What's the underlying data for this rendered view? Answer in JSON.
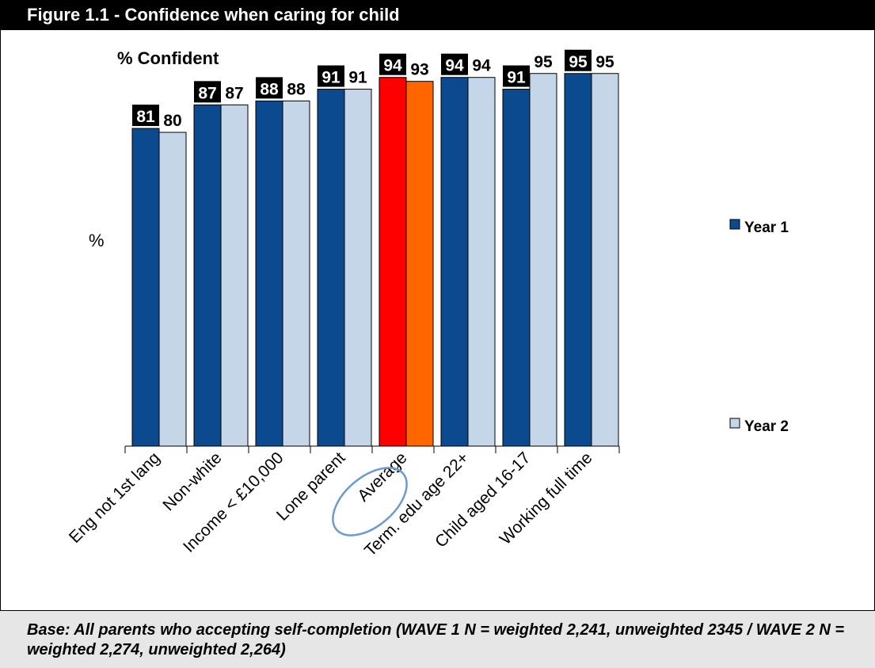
{
  "figure_title": "Figure 1.1 - Confidence when caring for child",
  "footnote": "Base: All parents who accepting self-completion (WAVE 1 N = weighted 2,241, unweighted 2345 / WAVE 2 N = weighted 2,274, unweighted 2,264)",
  "colors": {
    "year1": "#0b4a8f",
    "year2": "#c4d6e7",
    "highlight_year1": "#ff0000",
    "highlight_year2": "#ff6600",
    "circle": "#6b9bd1"
  },
  "chart_data": {
    "type": "bar",
    "title": "% Confident",
    "ylabel": "%",
    "ylim": [
      0,
      100
    ],
    "grid": false,
    "legend_position": "right",
    "highlighted_category": "Average",
    "categories": [
      "Eng not 1st lang",
      "Non-white",
      "Income < £10,000",
      "Lone parent",
      "Average",
      "Term. edu age 22+",
      "Child aged 16-17",
      "Working full time"
    ],
    "series": [
      {
        "name": "Year 1",
        "values": [
          81,
          87,
          88,
          91,
          94,
          94,
          91,
          95
        ]
      },
      {
        "name": "Year 2",
        "values": [
          80,
          87,
          88,
          91,
          93,
          94,
          95,
          95
        ]
      }
    ]
  }
}
